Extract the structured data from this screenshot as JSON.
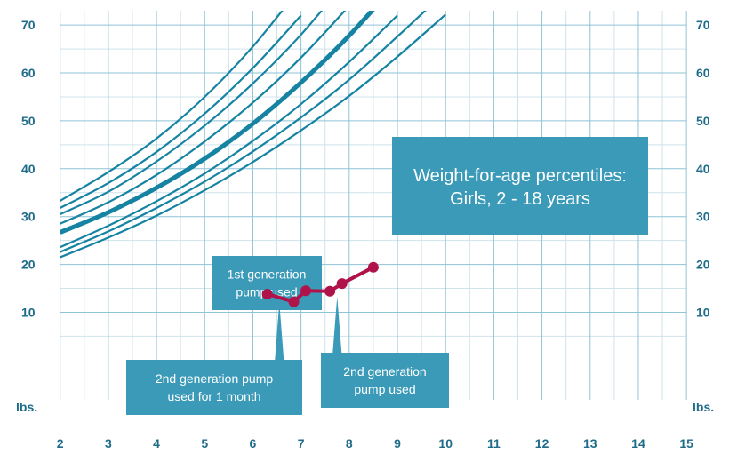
{
  "chart_data": {
    "type": "line",
    "title": "Weight-for-age percentiles:",
    "subtitle": "Girls, 2 - 18 years",
    "y_unit_label": "lbs.",
    "xlim": [
      1.6,
      15.2
    ],
    "ylim": [
      -12,
      73
    ],
    "x_ticks": [
      2,
      3,
      4,
      5,
      6,
      7,
      8,
      9,
      10,
      11,
      12,
      13,
      14,
      15
    ],
    "y_ticks": [
      10,
      20,
      30,
      40,
      50,
      60,
      70
    ],
    "grid": true,
    "colors": {
      "curves": "#1683a3",
      "patient": "#b0134a",
      "callout_fill": "#3a9ab8",
      "axis_text": "#1f6b8a"
    },
    "percentile_curves": [
      {
        "points": [
          [
            2,
            21.5
          ],
          [
            3,
            25.6
          ],
          [
            4,
            30.2
          ],
          [
            5,
            35.5
          ],
          [
            6,
            41.4
          ],
          [
            7,
            48.0
          ],
          [
            8,
            55.2
          ],
          [
            9,
            63.4
          ],
          [
            10,
            72.2
          ]
        ]
      },
      {
        "points": [
          [
            2,
            22.6
          ],
          [
            3,
            26.9
          ],
          [
            4,
            31.8
          ],
          [
            5,
            37.3
          ],
          [
            6,
            43.6
          ],
          [
            7,
            50.7
          ],
          [
            8,
            58.6
          ],
          [
            9,
            67.6
          ],
          [
            10,
            77.0
          ]
        ]
      },
      {
        "points": [
          [
            2,
            23.6
          ],
          [
            3,
            28.1
          ],
          [
            4,
            33.2
          ],
          [
            5,
            39.0
          ],
          [
            6,
            45.8
          ],
          [
            7,
            53.5
          ],
          [
            8,
            62.3
          ],
          [
            9,
            72.0
          ]
        ]
      },
      {
        "points": [
          [
            2,
            26.7
          ],
          [
            3,
            30.9
          ],
          [
            4,
            36.0
          ],
          [
            5,
            42.1
          ],
          [
            6,
            49.4
          ],
          [
            7,
            58.0
          ],
          [
            8,
            67.8
          ],
          [
            9,
            79.0
          ]
        ]
      },
      {
        "points": [
          [
            2,
            28.5
          ],
          [
            3,
            33.0
          ],
          [
            4,
            38.7
          ],
          [
            5,
            45.7
          ],
          [
            6,
            53.8
          ],
          [
            7,
            63.2
          ],
          [
            8,
            74.0
          ]
        ]
      },
      {
        "points": [
          [
            2,
            30.5
          ],
          [
            3,
            35.2
          ],
          [
            4,
            41.5
          ],
          [
            5,
            49.0
          ],
          [
            6,
            57.8
          ],
          [
            7,
            68.0
          ],
          [
            8,
            80.0
          ]
        ]
      },
      {
        "points": [
          [
            2,
            31.8
          ],
          [
            3,
            37.0
          ],
          [
            4,
            43.5
          ],
          [
            5,
            51.5
          ],
          [
            6,
            61.0
          ],
          [
            7,
            72.0
          ]
        ]
      },
      {
        "points": [
          [
            2,
            33.3
          ],
          [
            3,
            39.3
          ],
          [
            4,
            46.3
          ],
          [
            5,
            55.0
          ],
          [
            6,
            65.5
          ],
          [
            7,
            78.0
          ]
        ]
      }
    ],
    "median_index": 3,
    "patient_series": {
      "x": [
        6.3,
        6.85,
        7.1,
        7.6,
        7.85,
        8.5
      ],
      "y": [
        13.8,
        12.2,
        14.5,
        14.4,
        16.0,
        19.4
      ]
    },
    "callouts": [
      {
        "lines": [
          "1st generation",
          "pump used"
        ],
        "target": [
          6.5,
          14.0
        ]
      },
      {
        "lines": [
          "2nd generation pump",
          "used for 1 month"
        ],
        "target": [
          6.55,
          13.2
        ]
      },
      {
        "lines": [
          "2nd generation",
          "pump used"
        ],
        "target": [
          7.75,
          14.4
        ]
      }
    ]
  }
}
